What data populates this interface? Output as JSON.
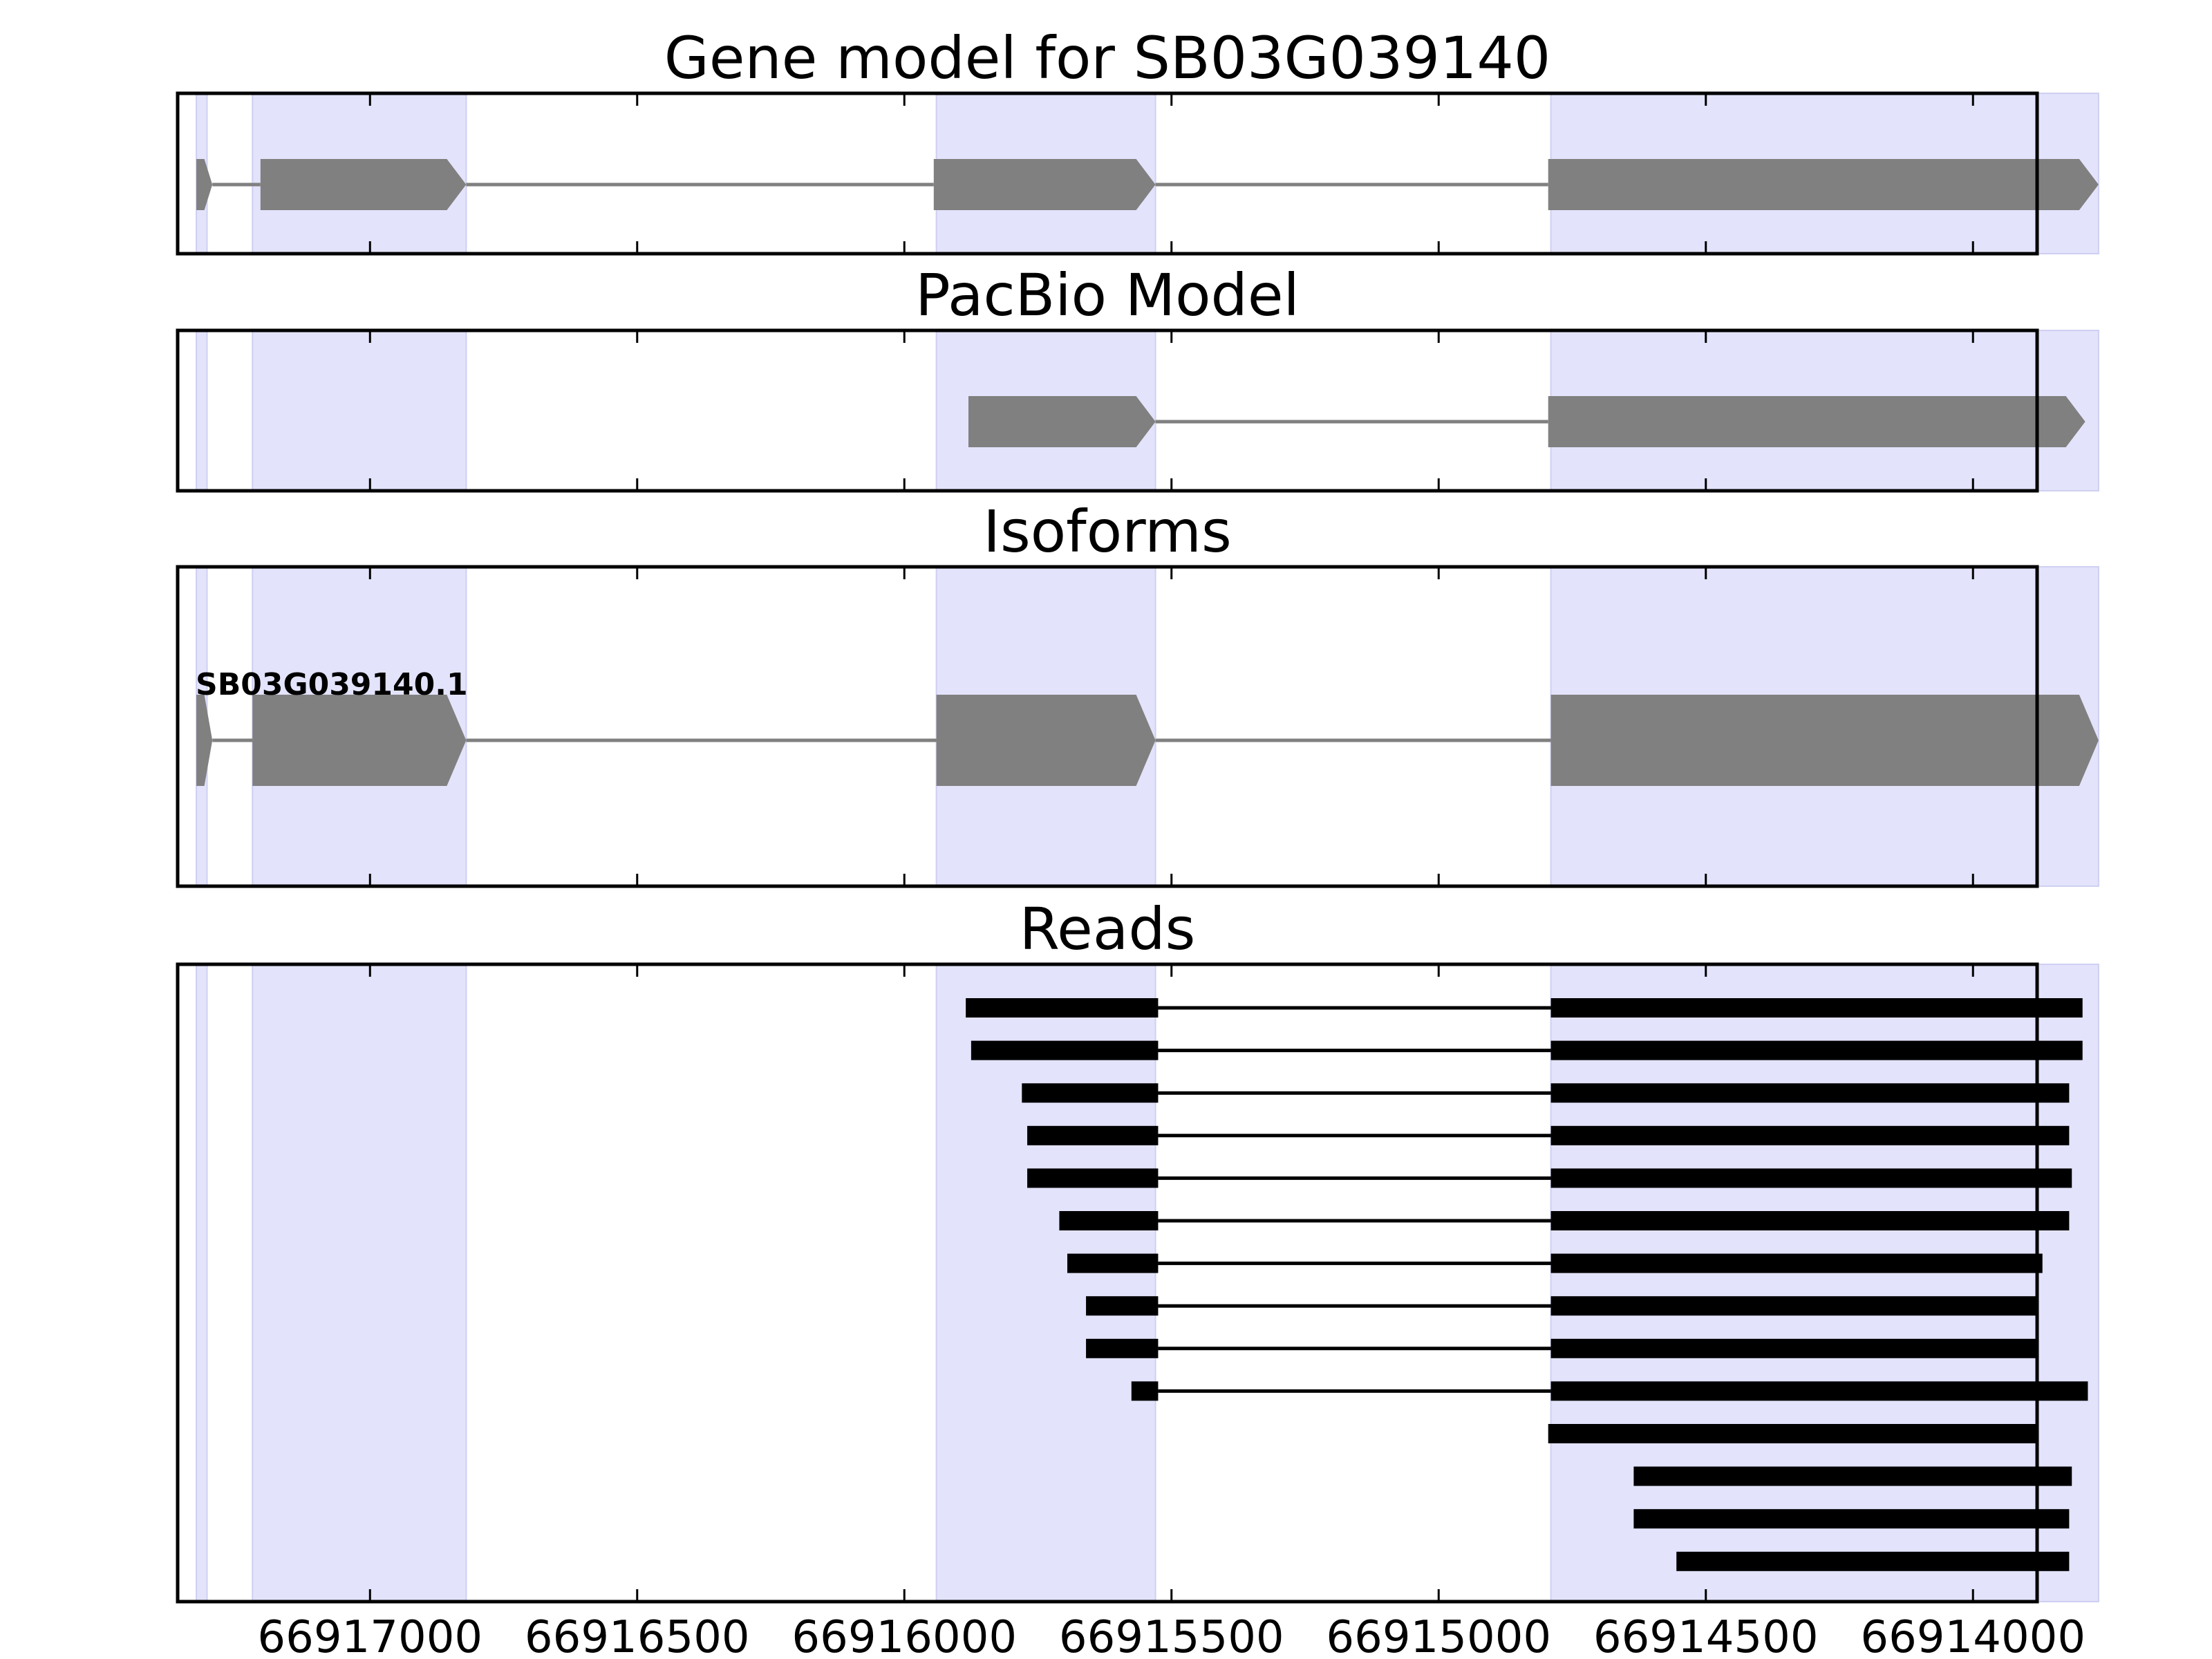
{
  "colors": {
    "background": "#ffffff",
    "exon_highlight": "#e3e3fc",
    "exon_highlight_edge": "#cfcff2",
    "model_feature": "#808080",
    "read_feature": "#000000",
    "axis": "#000000"
  },
  "chart_data": {
    "type": "gene-track",
    "x_axis": {
      "reversed": true,
      "range": [
        66917360,
        66913880
      ],
      "ticks": [
        66917000,
        66916500,
        66916000,
        66915500,
        66915000,
        66914500,
        66914000
      ],
      "tick_labels": [
        "66917000",
        "66916500",
        "66916000",
        "66915500",
        "66915000",
        "66914500",
        "66914000"
      ]
    },
    "highlight_regions": [
      [
        66917325,
        66917305
      ],
      [
        66917220,
        66916820
      ],
      [
        66915940,
        66915530
      ],
      [
        66914790,
        66913765
      ]
    ],
    "panels": [
      {
        "title": "Gene model for SB03G039140",
        "kind": "gene",
        "features": [
          {
            "strand": "-",
            "exons": [
              [
                66917325,
                66917295
              ],
              [
                66917205,
                66916820
              ],
              [
                66915945,
                66915530
              ],
              [
                66914795,
                66913765
              ]
            ]
          }
        ]
      },
      {
        "title": "PacBio Model",
        "kind": "gene",
        "features": [
          {
            "strand": "-",
            "exons": [
              [
                66915880,
                66915530
              ],
              [
                66914795,
                66913790
              ]
            ]
          }
        ]
      },
      {
        "title": "Isoforms",
        "kind": "isoforms",
        "features": [
          {
            "name": "SB03G039140.1",
            "strand": "-",
            "exons": [
              [
                66917325,
                66917295
              ],
              [
                66917220,
                66916820
              ],
              [
                66915940,
                66915530
              ],
              [
                66914790,
                66913765
              ]
            ]
          }
        ]
      },
      {
        "title": "Reads",
        "kind": "reads",
        "features": [
          {
            "exons": [
              [
                66915885,
                66915525
              ],
              [
                66914790,
                66913795
              ]
            ]
          },
          {
            "exons": [
              [
                66915875,
                66915525
              ],
              [
                66914790,
                66913795
              ]
            ]
          },
          {
            "exons": [
              [
                66915780,
                66915525
              ],
              [
                66914790,
                66913820
              ]
            ]
          },
          {
            "exons": [
              [
                66915770,
                66915525
              ],
              [
                66914790,
                66913820
              ]
            ]
          },
          {
            "exons": [
              [
                66915770,
                66915525
              ],
              [
                66914790,
                66913815
              ]
            ]
          },
          {
            "exons": [
              [
                66915710,
                66915525
              ],
              [
                66914790,
                66913820
              ]
            ]
          },
          {
            "exons": [
              [
                66915695,
                66915525
              ],
              [
                66914790,
                66913870
              ]
            ]
          },
          {
            "exons": [
              [
                66915660,
                66915525
              ],
              [
                66914790,
                66913880
              ]
            ]
          },
          {
            "exons": [
              [
                66915660,
                66915525
              ],
              [
                66914790,
                66913880
              ]
            ]
          },
          {
            "exons": [
              [
                66915575,
                66915525
              ],
              [
                66914790,
                66913785
              ]
            ]
          },
          {
            "exons": [
              [
                66914795,
                66913880
              ]
            ]
          },
          {
            "exons": [
              [
                66914635,
                66913815
              ]
            ]
          },
          {
            "exons": [
              [
                66914635,
                66913820
              ]
            ]
          },
          {
            "exons": [
              [
                66914555,
                66913820
              ]
            ]
          }
        ]
      }
    ]
  }
}
